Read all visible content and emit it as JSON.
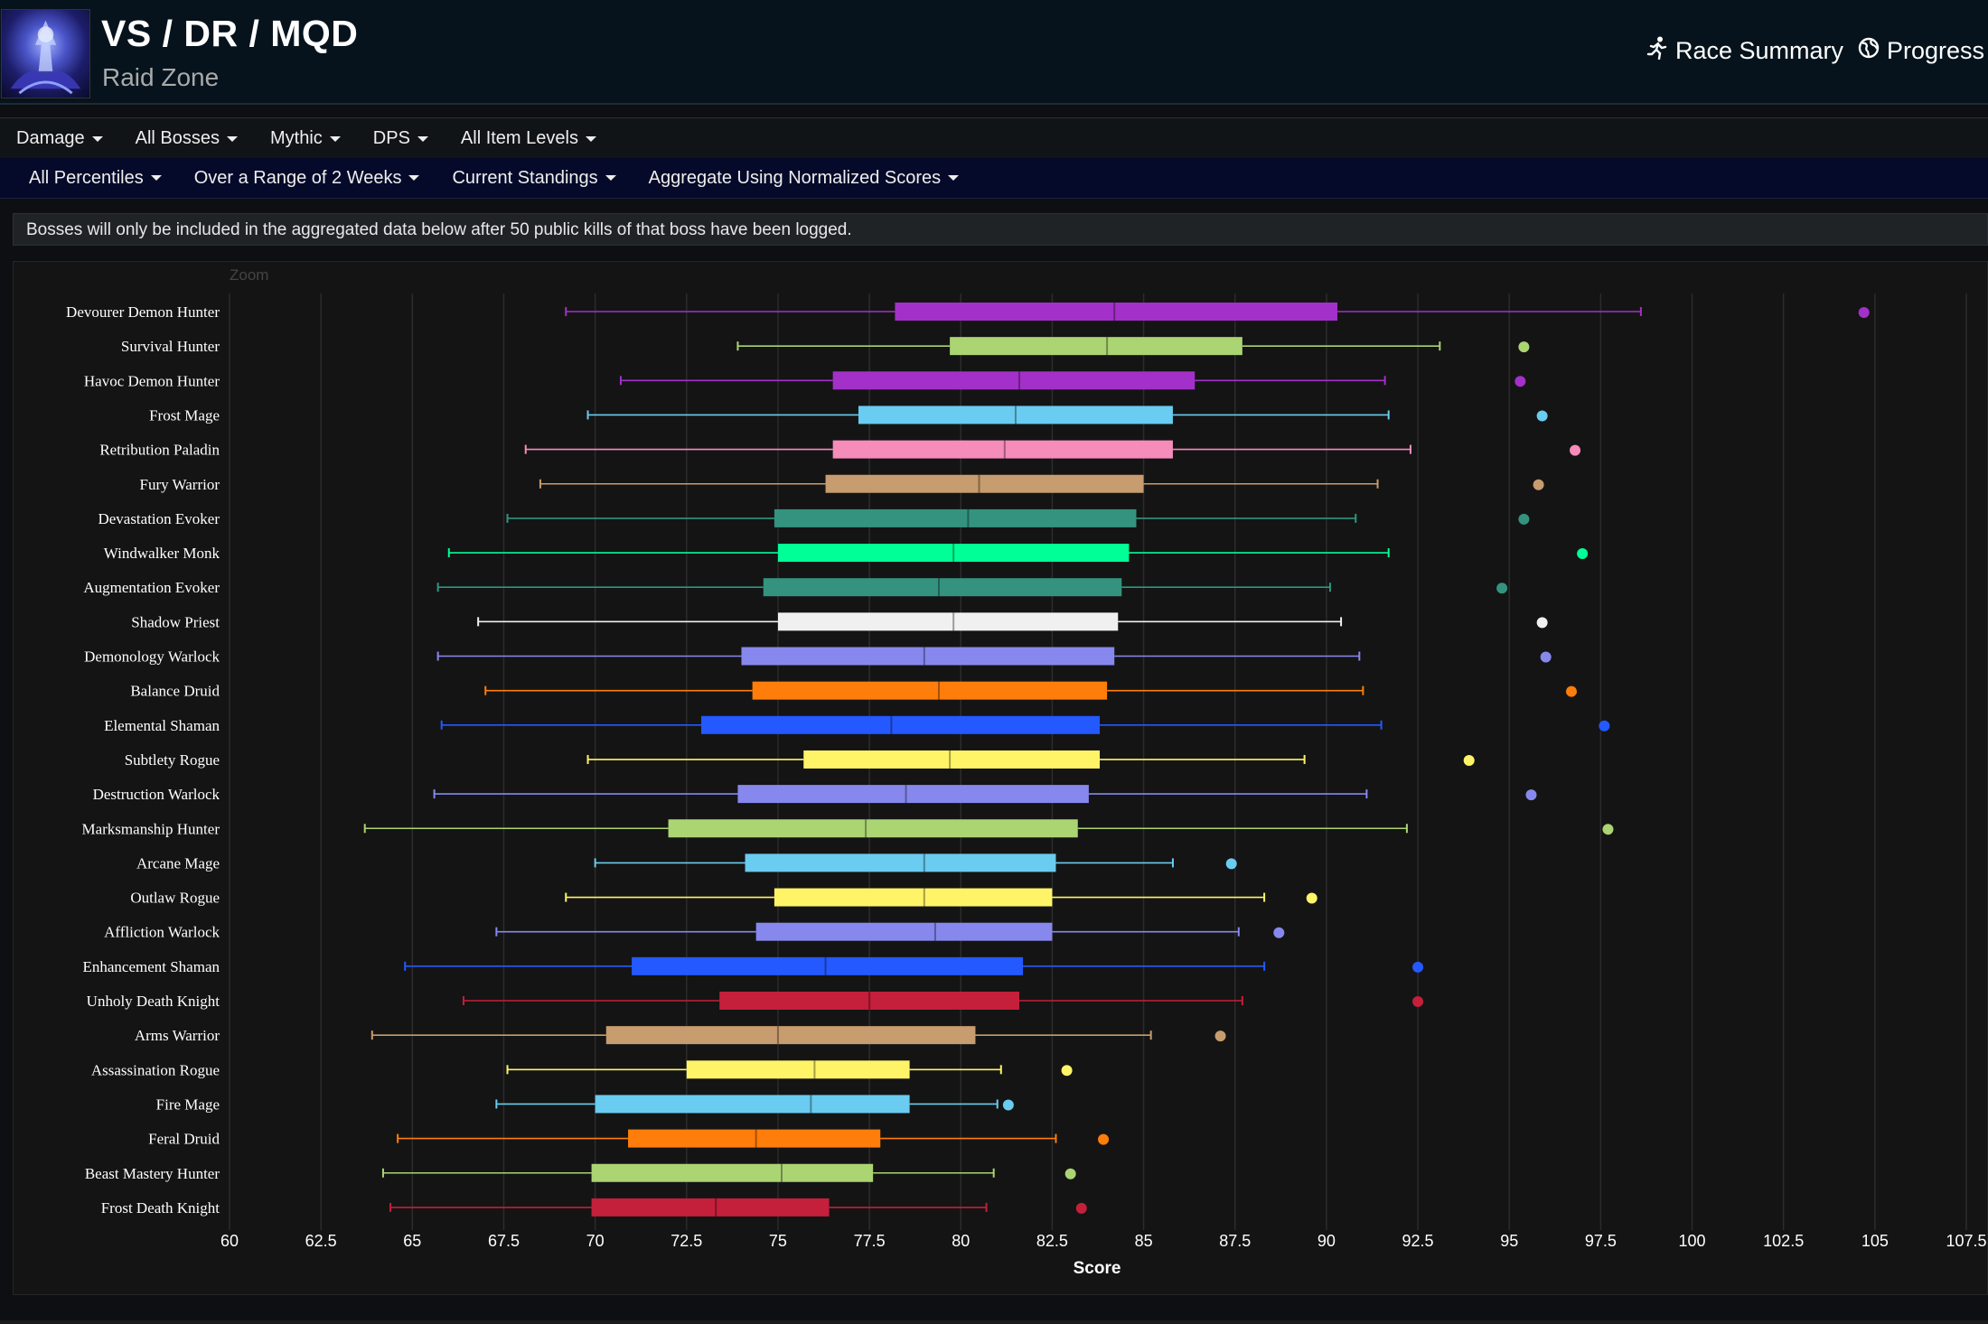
{
  "header": {
    "title": "VS / DR / MQD",
    "subtitle": "Raid Zone",
    "links": [
      {
        "label": "Race Summary",
        "icon": "running-person-icon"
      },
      {
        "label": "Progress",
        "icon": "globe-icon"
      }
    ]
  },
  "filters_row1": [
    "Damage",
    "All Bosses",
    "Mythic",
    "DPS",
    "All Item Levels"
  ],
  "filters_row2": [
    "All Percentiles",
    "Over a Range of 2 Weeks",
    "Current Standings",
    "Aggregate Using Normalized Scores"
  ],
  "notice": "Bosses will only be included in the aggregated data below after 50 public kills of that boss have been logged.",
  "zoom_label": "Zoom",
  "chart_data": {
    "type": "boxplot",
    "xlabel": "Score",
    "xlim": [
      60,
      107.5
    ],
    "xticks": [
      "60",
      "62.5",
      "65",
      "67.5",
      "70",
      "72.5",
      "75",
      "77.5",
      "80",
      "82.5",
      "85",
      "87.5",
      "90",
      "92.5",
      "95",
      "97.5",
      "100",
      "102.5",
      "105",
      "107.5"
    ],
    "grid": true,
    "series": [
      {
        "name": "Devourer Demon Hunter",
        "color": "#a330c9",
        "min": 69.2,
        "q1": 78.2,
        "median": 84.2,
        "q3": 90.3,
        "max": 98.6,
        "outlier": 104.7
      },
      {
        "name": "Survival Hunter",
        "color": "#abd473",
        "min": 73.9,
        "q1": 79.7,
        "median": 84.0,
        "q3": 87.7,
        "max": 93.1,
        "outlier": 95.4
      },
      {
        "name": "Havoc Demon Hunter",
        "color": "#a330c9",
        "min": 70.7,
        "q1": 76.5,
        "median": 81.6,
        "q3": 86.4,
        "max": 91.6,
        "outlier": 95.3
      },
      {
        "name": "Frost Mage",
        "color": "#69ccf0",
        "min": 69.8,
        "q1": 77.2,
        "median": 81.5,
        "q3": 85.8,
        "max": 91.7,
        "outlier": 95.9
      },
      {
        "name": "Retribution Paladin",
        "color": "#f58cba",
        "min": 68.1,
        "q1": 76.5,
        "median": 81.2,
        "q3": 85.8,
        "max": 92.3,
        "outlier": 96.8
      },
      {
        "name": "Fury Warrior",
        "color": "#c79c6e",
        "min": 68.5,
        "q1": 76.3,
        "median": 80.5,
        "q3": 85.0,
        "max": 91.4,
        "outlier": 95.8
      },
      {
        "name": "Devastation Evoker",
        "color": "#33937f",
        "min": 67.6,
        "q1": 74.9,
        "median": 80.2,
        "q3": 84.8,
        "max": 90.8,
        "outlier": 95.4
      },
      {
        "name": "Windwalker Monk",
        "color": "#00ff96",
        "min": 66.0,
        "q1": 75.0,
        "median": 79.8,
        "q3": 84.6,
        "max": 91.7,
        "outlier": 97.0
      },
      {
        "name": "Augmentation Evoker",
        "color": "#33937f",
        "min": 65.7,
        "q1": 74.6,
        "median": 79.4,
        "q3": 84.4,
        "max": 90.1,
        "outlier": 94.8
      },
      {
        "name": "Shadow Priest",
        "color": "#f0f0f0",
        "min": 66.8,
        "q1": 75.0,
        "median": 79.8,
        "q3": 84.3,
        "max": 90.4,
        "outlier": 95.9
      },
      {
        "name": "Demonology Warlock",
        "color": "#8788ee",
        "min": 65.7,
        "q1": 74.0,
        "median": 79.0,
        "q3": 84.2,
        "max": 90.9,
        "outlier": 96.0
      },
      {
        "name": "Balance Druid",
        "color": "#ff7d0a",
        "min": 67.0,
        "q1": 74.3,
        "median": 79.4,
        "q3": 84.0,
        "max": 91.0,
        "outlier": 96.7
      },
      {
        "name": "Elemental Shaman",
        "color": "#2459ff",
        "min": 65.8,
        "q1": 72.9,
        "median": 78.1,
        "q3": 83.8,
        "max": 91.5,
        "outlier": 97.6
      },
      {
        "name": "Subtlety Rogue",
        "color": "#fff468",
        "min": 69.8,
        "q1": 75.7,
        "median": 79.7,
        "q3": 83.8,
        "max": 89.4,
        "outlier": 93.9
      },
      {
        "name": "Destruction Warlock",
        "color": "#8788ee",
        "min": 65.6,
        "q1": 73.9,
        "median": 78.5,
        "q3": 83.5,
        "max": 91.1,
        "outlier": 95.6
      },
      {
        "name": "Marksmanship Hunter",
        "color": "#abd473",
        "min": 63.7,
        "q1": 72.0,
        "median": 77.4,
        "q3": 83.2,
        "max": 92.2,
        "outlier": 97.7
      },
      {
        "name": "Arcane Mage",
        "color": "#69ccf0",
        "min": 70.0,
        "q1": 74.1,
        "median": 79.0,
        "q3": 82.6,
        "max": 85.8,
        "outlier": 87.4
      },
      {
        "name": "Outlaw Rogue",
        "color": "#fff468",
        "min": 69.2,
        "q1": 74.9,
        "median": 79.0,
        "q3": 82.5,
        "max": 88.3,
        "outlier": 89.6
      },
      {
        "name": "Affliction Warlock",
        "color": "#8788ee",
        "min": 67.3,
        "q1": 74.4,
        "median": 79.3,
        "q3": 82.5,
        "max": 87.6,
        "outlier": 88.7
      },
      {
        "name": "Enhancement Shaman",
        "color": "#2459ff",
        "min": 64.8,
        "q1": 71.0,
        "median": 76.3,
        "q3": 81.7,
        "max": 88.3,
        "outlier": 92.5
      },
      {
        "name": "Unholy Death Knight",
        "color": "#c41f3b",
        "min": 66.4,
        "q1": 73.4,
        "median": 77.5,
        "q3": 81.6,
        "max": 87.7,
        "outlier": 92.5
      },
      {
        "name": "Arms Warrior",
        "color": "#c79c6e",
        "min": 63.9,
        "q1": 70.3,
        "median": 75.0,
        "q3": 80.4,
        "max": 85.2,
        "outlier": 87.1
      },
      {
        "name": "Assassination Rogue",
        "color": "#fff468",
        "min": 67.6,
        "q1": 72.5,
        "median": 76.0,
        "q3": 78.6,
        "max": 81.1,
        "outlier": 82.9
      },
      {
        "name": "Fire Mage",
        "color": "#69ccf0",
        "min": 67.3,
        "q1": 70.0,
        "median": 75.9,
        "q3": 78.6,
        "max": 81.0,
        "outlier": 81.3
      },
      {
        "name": "Feral Druid",
        "color": "#ff7d0a",
        "min": 64.6,
        "q1": 70.9,
        "median": 74.4,
        "q3": 77.8,
        "max": 82.6,
        "outlier": 83.9
      },
      {
        "name": "Beast Mastery Hunter",
        "color": "#abd473",
        "min": 64.2,
        "q1": 69.9,
        "median": 75.1,
        "q3": 77.6,
        "max": 80.9,
        "outlier": 83.0
      },
      {
        "name": "Frost Death Knight",
        "color": "#c41f3b",
        "min": 64.4,
        "q1": 69.9,
        "median": 73.3,
        "q3": 76.4,
        "max": 80.7,
        "outlier": 83.3
      }
    ]
  }
}
